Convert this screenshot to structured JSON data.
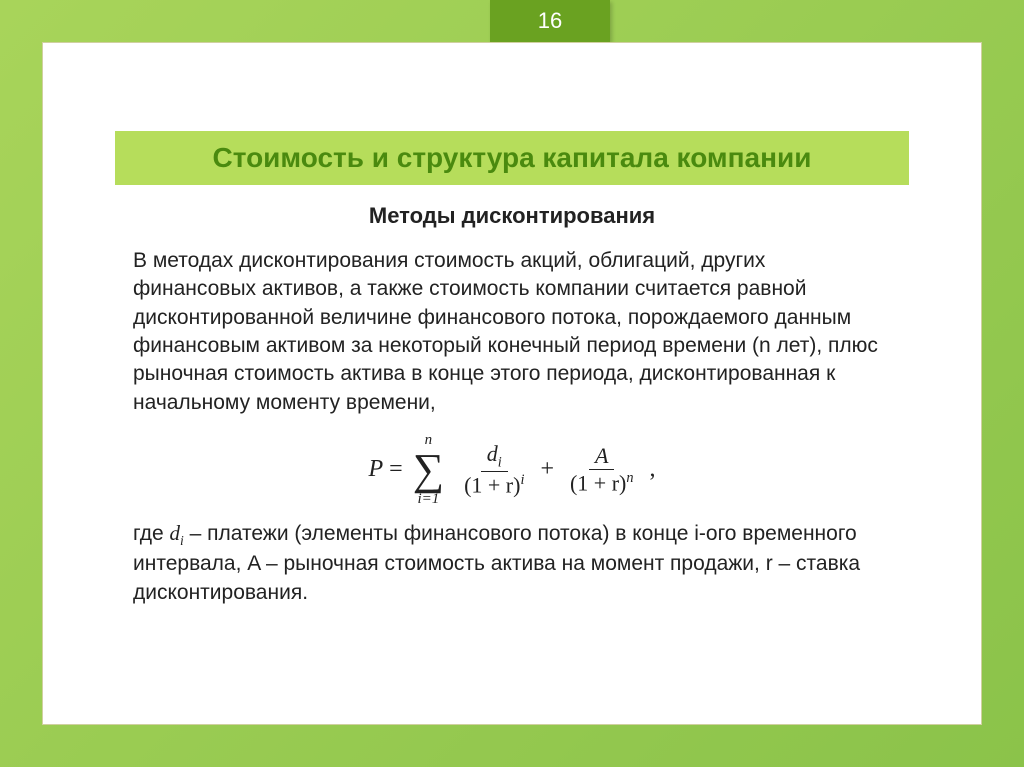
{
  "page_number": "16",
  "title": "Стоимость и структура капитала компании",
  "subtitle": "Методы дисконтирования",
  "paragraph1": "В методах дисконтирования стоимость акций, облигаций, других финансовых активов, а также стоимость компании считается равной дисконтированной величине финансового потока, порождаемого данным финансовым активом за некоторый конечный период времени (n лет), плюс рыночная стоимость актива в конце этого периода, дисконтированная к начальному моменту времени,",
  "formula": {
    "lhs": "P",
    "eq": "=",
    "sum_top": "n",
    "sum_bottom": "i=1",
    "frac1_num_var": "d",
    "frac1_num_sub": "i",
    "frac1_den_base": "(1 + r)",
    "frac1_den_exp": "i",
    "plus": "+",
    "frac2_num": "A",
    "frac2_den_base": "(1 + r)",
    "frac2_den_exp": "n",
    "tail": ","
  },
  "paragraph2_pre": "где ",
  "paragraph2_var": "d",
  "paragraph2_sub": "i",
  "paragraph2_post": " – платежи (элементы финансового потока) в конце i-ого временного интервала, A – рыночная стоимость актива на момент продажи, r – ставка дисконтирования.",
  "colors": {
    "bg_gradient_start": "#a8d45a",
    "bg_gradient_end": "#8bc34a",
    "panel_bg": "#ffffff",
    "tab_bg": "#6aa221",
    "tab_text": "#ffffff",
    "title_bar_bg": "#b6dd5b",
    "title_text": "#4a8a0f",
    "body_text": "#222222"
  },
  "typography": {
    "title_fontsize": 28,
    "subtitle_fontsize": 22,
    "body_fontsize": 21,
    "formula_fontsize": 24,
    "page_number_fontsize": 22
  }
}
